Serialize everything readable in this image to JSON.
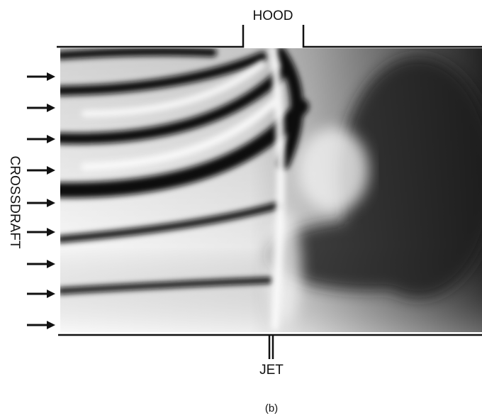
{
  "labels": {
    "top": "HOOD",
    "side": "CROSSDRAFT",
    "bottom": "JET",
    "caption": "(b)"
  }
}
